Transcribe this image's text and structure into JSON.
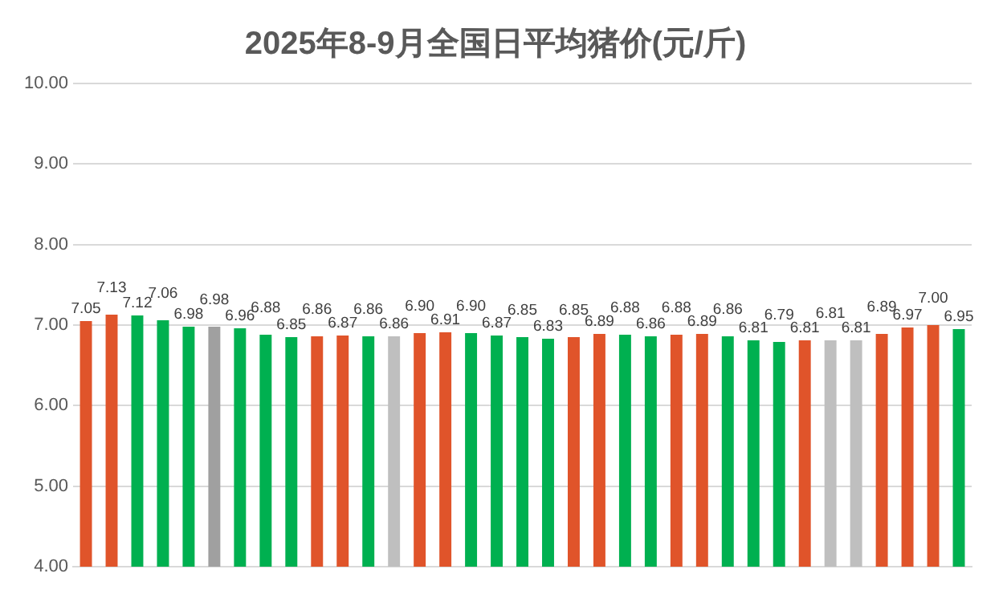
{
  "chart_data": {
    "type": "bar",
    "title": "2025年8-9月全国日平均猪价(元/斤)",
    "categories": [
      null,
      null,
      null,
      null,
      null,
      null,
      null,
      null,
      null,
      null,
      null,
      null,
      null,
      null,
      null,
      null,
      null,
      null,
      null,
      null,
      null,
      null,
      null,
      null,
      null,
      null,
      null,
      null,
      null,
      null,
      null,
      null,
      null,
      null,
      null
    ],
    "values": [
      7.05,
      7.13,
      7.12,
      7.06,
      6.98,
      6.98,
      6.96,
      6.88,
      6.85,
      6.86,
      6.87,
      6.86,
      6.86,
      6.9,
      6.91,
      6.9,
      6.87,
      6.85,
      6.83,
      6.85,
      6.89,
      6.88,
      6.86,
      6.88,
      6.89,
      6.86,
      6.81,
      6.79,
      6.81,
      6.81,
      6.81,
      6.89,
      6.97,
      7.0,
      6.95
    ],
    "colors": [
      "#e0542a",
      "#e0542a",
      "#00b050",
      "#00b050",
      "#00b050",
      "#a0a0a0",
      "#00b050",
      "#00b050",
      "#00b050",
      "#e0542a",
      "#e0542a",
      "#00b050",
      "#bfbfbf",
      "#e0542a",
      "#e0542a",
      "#00b050",
      "#00b050",
      "#00b050",
      "#00b050",
      "#e0542a",
      "#e0542a",
      "#00b050",
      "#00b050",
      "#e0542a",
      "#e0542a",
      "#00b050",
      "#00b050",
      "#00b050",
      "#e0542a",
      "#bfbfbf",
      "#bfbfbf",
      "#e0542a",
      "#e0542a",
      "#e0542a",
      "#00b050"
    ],
    "ylim": [
      4,
      10
    ],
    "yticks": [
      {
        "value": 4,
        "label": "4.00"
      },
      {
        "value": 5,
        "label": "5.00"
      },
      {
        "value": 6,
        "label": "6.00"
      },
      {
        "value": 7,
        "label": "7.00"
      },
      {
        "value": 8,
        "label": "8.00"
      },
      {
        "value": 9,
        "label": "9.00"
      },
      {
        "value": 10,
        "label": "10.00"
      }
    ],
    "value_labels": [
      "7.05",
      "7.13",
      "7.12",
      "7.06",
      "6.98",
      "6.98",
      "6.96",
      "6.88",
      "6.85",
      "6.86",
      "6.87",
      "6.86",
      "6.86",
      "6.90",
      "6.91",
      "6.90",
      "6.87",
      "6.85",
      "6.83",
      "6.85",
      "6.89",
      "6.88",
      "6.86",
      "6.88",
      "6.89",
      "6.86",
      "6.81",
      "6.79",
      "6.81",
      "6.81",
      "6.81",
      "6.89",
      "6.97",
      "7.00",
      "6.95"
    ],
    "grid": "y",
    "legend": false
  }
}
